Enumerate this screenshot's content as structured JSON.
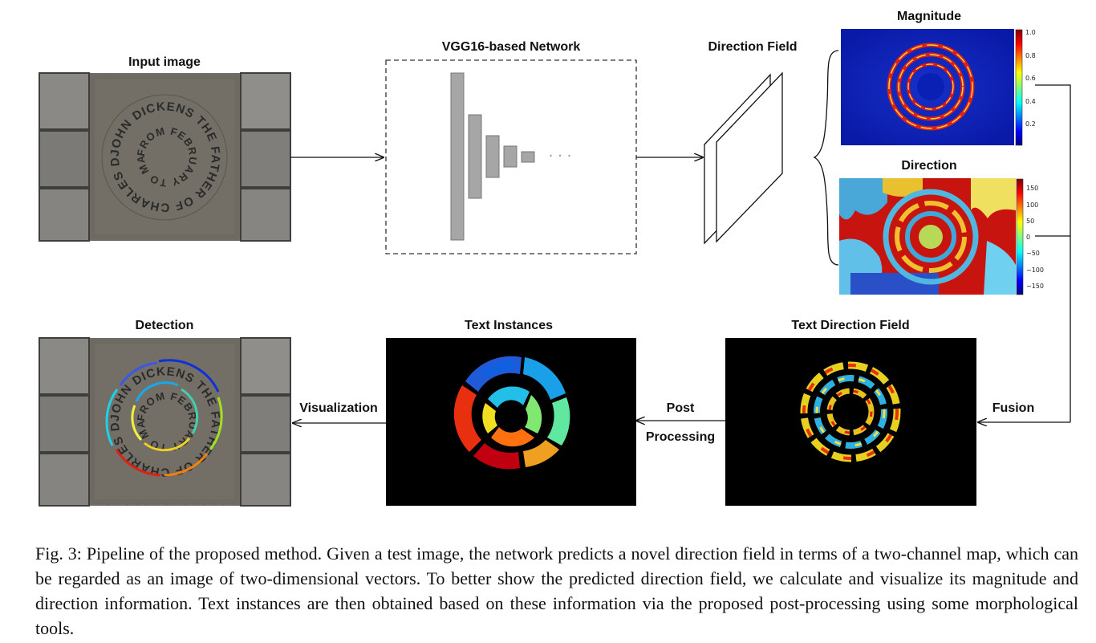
{
  "labels": {
    "input_image": "Input image",
    "network": "VGG16-based Network",
    "direction_field": "Direction Field",
    "magnitude": "Magnitude",
    "direction": "Direction",
    "detection": "Detection",
    "text_instances": "Text Instances",
    "text_direction_field": "Text Direction Field",
    "visualization": "Visualization",
    "post": "Post",
    "processing": "Processing",
    "fusion": "Fusion"
  },
  "network_ellipsis": "· · ·",
  "stone_text": {
    "ring_outer": "JOHN DICKENS THE FATHER OF CHARLES DICKENS WAS IMPRISONED HERE",
    "ring_inner": "FROM FEBRUARY TO MAY 1824 FOR DEBT"
  },
  "colorbars": {
    "magnitude_ticks": [
      "1.0",
      "0.8",
      "0.6",
      "0.4",
      "0.2"
    ],
    "direction_ticks": [
      "150",
      "100",
      "50",
      "0",
      "−50",
      "−100",
      "−150"
    ]
  },
  "caption": "Fig. 3: Pipeline of the proposed method. Given a test image, the network predicts a novel direction field in terms of a two-channel map, which can be regarded as an image of two-dimensional vectors. To better show the predicted direction field, we calculate and visualize its magnitude and direction information. Text instances are then obtained based on these information via the proposed post-processing using some morphological tools.",
  "colors": {
    "background": "#ffffff",
    "arrow": "#111111",
    "network_layer": "#a6a6a6",
    "stone_paving": "#6b6b68",
    "magnitude_bg": "#0a1fb4",
    "direction_bg": "#c8140f",
    "instances_bg": "#000000"
  }
}
